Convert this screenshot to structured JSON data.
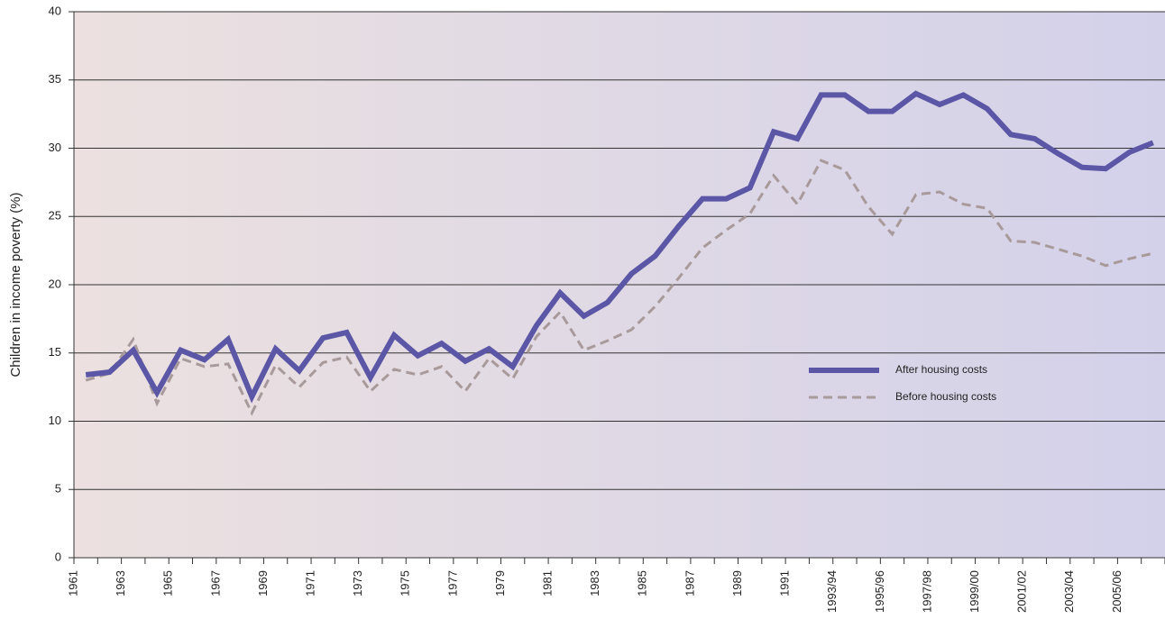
{
  "chart_data": {
    "type": "line",
    "y_label": "Children in income poverty (%)",
    "categories": [
      "1961",
      null,
      "1963",
      null,
      "1965",
      null,
      "1967",
      null,
      "1969",
      null,
      "1971",
      null,
      "1973",
      null,
      "1975",
      null,
      "1977",
      null,
      "1979",
      null,
      "1981",
      null,
      "1983",
      null,
      "1985",
      null,
      "1987",
      null,
      "1989",
      null,
      "1991",
      null,
      "1993/94",
      null,
      "1995/96",
      null,
      "1997/98",
      null,
      "1999/00",
      null,
      "2001/02",
      null,
      "2003/04",
      null,
      "2005/06",
      null
    ],
    "series": [
      {
        "name": "After housing costs",
        "color": "#5b57a6",
        "dashed": false,
        "values": [
          13.4,
          13.6,
          15.2,
          12.1,
          15.2,
          14.5,
          16.0,
          11.8,
          15.3,
          13.7,
          16.1,
          16.5,
          13.2,
          16.3,
          14.8,
          15.7,
          14.4,
          15.3,
          14.0,
          17.0,
          19.4,
          17.7,
          18.7,
          20.8,
          22.1,
          24.3,
          26.3,
          26.3,
          27.1,
          31.2,
          30.7,
          33.9,
          33.9,
          32.7,
          32.7,
          34.0,
          33.2,
          33.9,
          32.9,
          31.0,
          30.7,
          29.6,
          28.6,
          28.5,
          29.7,
          30.4
        ]
      },
      {
        "name": "Before housing costs",
        "color": "#a89a9a",
        "dashed": true,
        "values": [
          13.0,
          13.5,
          16.0,
          11.3,
          14.6,
          14.0,
          14.2,
          10.6,
          14.1,
          12.5,
          14.3,
          14.7,
          12.2,
          13.8,
          13.4,
          14.0,
          12.2,
          14.6,
          13.1,
          16.2,
          18.0,
          15.2,
          15.9,
          16.7,
          18.4,
          20.5,
          22.7,
          24.0,
          25.2,
          28.0,
          25.9,
          29.1,
          28.4,
          25.7,
          23.7,
          26.6,
          26.8,
          25.9,
          25.6,
          23.2,
          23.1,
          22.6,
          22.1,
          21.4,
          21.9,
          22.3
        ]
      }
    ],
    "ylim": [
      0,
      40
    ],
    "yticks": [
      0,
      5,
      10,
      15,
      20,
      25,
      30,
      35,
      40
    ],
    "grid": true
  }
}
